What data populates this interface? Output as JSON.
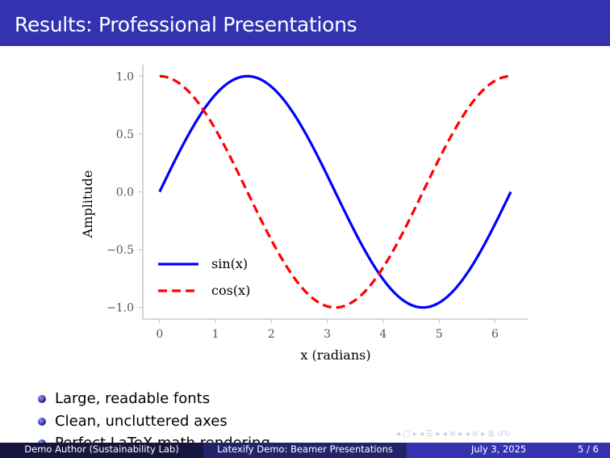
{
  "frame": {
    "title": "Results: Professional Presentations"
  },
  "chart_data": {
    "type": "line",
    "xlabel": "x (radians)",
    "ylabel": "Amplitude",
    "xlim": [
      -0.3,
      6.6
    ],
    "ylim": [
      -1.1,
      1.1
    ],
    "xticks": [
      0,
      1,
      2,
      3,
      4,
      5,
      6
    ],
    "yticks": [
      1.0,
      0.5,
      0.0,
      -0.5,
      -1.0
    ],
    "ytick_labels": [
      "1.0",
      "0.5",
      "0.0",
      "−0.5",
      "−1.0"
    ],
    "legend_position": "lower-left",
    "grid": false,
    "series": [
      {
        "name": "sin(x)",
        "function": "sin",
        "color": "#0000ff",
        "style": "solid",
        "x": [
          0,
          0.5,
          1,
          1.5708,
          2,
          2.5,
          3,
          3.1416,
          3.5,
          4,
          4.5,
          4.7124,
          5,
          5.5,
          6,
          6.2832
        ],
        "y": [
          0,
          0.479,
          0.841,
          1.0,
          0.909,
          0.598,
          0.141,
          0,
          -0.351,
          -0.757,
          -0.978,
          -1.0,
          -0.959,
          -0.706,
          -0.279,
          0
        ]
      },
      {
        "name": "cos(x)",
        "function": "cos",
        "color": "#ff0000",
        "style": "dashed",
        "x": [
          0,
          0.5,
          1,
          1.5708,
          2,
          2.5,
          3,
          3.1416,
          3.5,
          4,
          4.5,
          4.7124,
          5,
          5.5,
          6,
          6.2832
        ],
        "y": [
          1.0,
          0.878,
          0.54,
          0,
          -0.416,
          -0.801,
          -0.99,
          -1.0,
          -0.936,
          -0.654,
          -0.211,
          0,
          0.284,
          0.709,
          0.96,
          1.0
        ]
      }
    ]
  },
  "bullets": [
    "Large, readable fonts",
    "Clean, uncluttered axes",
    "Perfect LaTeX math rendering"
  ],
  "nav_symbols": "◂ □ ▸  ◂ ☰ ▸  ◂ ≡ ▸  ◂ ≡ ▸   ≣   ↺↻",
  "footer": {
    "author": "Demo Author  (Sustainability Lab)",
    "title": "Latexify Demo: Beamer Presentations",
    "date": "July 3, 2025",
    "page": "5 / 6"
  }
}
